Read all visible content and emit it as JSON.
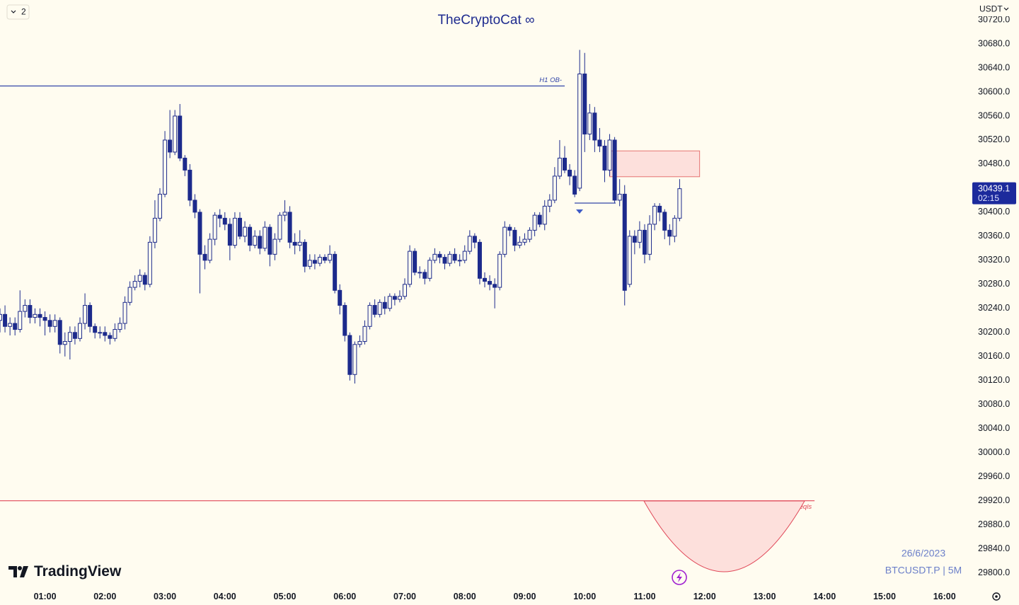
{
  "ui": {
    "collapse_button": "2",
    "currency": "USDT",
    "brand": "TradingView",
    "date": "26/6/2023",
    "symbol": "BTCUSDT.P | 5M"
  },
  "chart_data": {
    "type": "candlestick",
    "title": "TheCryptoCat ∞",
    "color": "#1c2a8c",
    "x": [
      "00:15",
      "00:20",
      "00:25",
      "00:30",
      "00:35",
      "00:40",
      "00:45",
      "00:50",
      "00:55",
      "01:00",
      "01:05",
      "01:10",
      "01:15",
      "01:20",
      "01:25",
      "01:30",
      "01:35",
      "01:40",
      "01:45",
      "01:50",
      "01:55",
      "02:00",
      "02:05",
      "02:10",
      "02:15",
      "02:20",
      "02:25",
      "02:30",
      "02:35",
      "02:40",
      "02:45",
      "02:50",
      "02:55",
      "03:00",
      "03:05",
      "03:10",
      "03:15",
      "03:20",
      "03:25",
      "03:30",
      "03:35",
      "03:40",
      "03:45",
      "03:50",
      "03:55",
      "04:00",
      "04:05",
      "04:10",
      "04:15",
      "04:20",
      "04:25",
      "04:30",
      "04:35",
      "04:40",
      "04:45",
      "04:50",
      "04:55",
      "05:00",
      "05:05",
      "05:10",
      "05:15",
      "05:20",
      "05:25",
      "05:30",
      "05:35",
      "05:40",
      "05:45",
      "05:50",
      "05:55",
      "06:00",
      "06:05",
      "06:10",
      "06:15",
      "06:20",
      "06:25",
      "06:30",
      "06:35",
      "06:40",
      "06:45",
      "06:50",
      "06:55",
      "07:00",
      "07:05",
      "07:10",
      "07:15",
      "07:20",
      "07:25",
      "07:30",
      "07:35",
      "07:40",
      "07:45",
      "07:50",
      "07:55",
      "08:00",
      "08:05",
      "08:10",
      "08:15",
      "08:20",
      "08:25",
      "08:30",
      "08:35",
      "08:40",
      "08:45",
      "08:50",
      "08:55",
      "09:00",
      "09:05",
      "09:10",
      "09:15",
      "09:20",
      "09:25",
      "09:30",
      "09:35",
      "09:40",
      "09:45",
      "09:50",
      "09:55",
      "10:00",
      "10:05",
      "10:10",
      "10:15",
      "10:20",
      "10:25",
      "10:30",
      "10:35",
      "10:40",
      "10:45",
      "10:50",
      "10:55",
      "11:00",
      "11:05",
      "11:10",
      "11:15",
      "11:20",
      "11:25",
      "11:30",
      "11:35"
    ],
    "open": [
      30220,
      30230,
      30210,
      30215,
      30205,
      30235,
      30245,
      30225,
      30230,
      30225,
      30220,
      30210,
      30220,
      30180,
      30185,
      30200,
      30190,
      30215,
      30245,
      30210,
      30200,
      30200,
      30195,
      30190,
      30205,
      30215,
      30250,
      30275,
      30285,
      30295,
      30280,
      30350,
      30390,
      30430,
      30520,
      30500,
      30560,
      30490,
      30470,
      30420,
      30400,
      30330,
      30320,
      30355,
      30395,
      30390,
      30380,
      30345,
      30390,
      30360,
      30375,
      30345,
      30360,
      30340,
      30375,
      30330,
      30355,
      30395,
      30400,
      30350,
      30345,
      30350,
      30310,
      30320,
      30315,
      30325,
      30320,
      30330,
      30270,
      30245,
      30195,
      30130,
      30180,
      30185,
      30210,
      30245,
      30230,
      30250,
      30240,
      30260,
      30255,
      30260,
      30280,
      30335,
      30300,
      30300,
      30290,
      30320,
      30330,
      30325,
      30315,
      30330,
      30320,
      30320,
      30335,
      30360,
      30350,
      30290,
      30285,
      30280,
      30275,
      30330,
      30375,
      30370,
      30345,
      30350,
      30355,
      30370,
      30395,
      30380,
      30410,
      30420,
      30460,
      30490,
      30470,
      30460,
      30440,
      30630,
      30530,
      30565,
      30520,
      30510,
      30470,
      30520,
      30420,
      30430,
      30280,
      30360,
      30350,
      30370,
      30330,
      30380,
      30410,
      30400,
      30370,
      30360,
      30390
    ],
    "high": [
      30240,
      30245,
      30225,
      30225,
      30270,
      30255,
      30255,
      30240,
      30240,
      30235,
      30230,
      30230,
      30225,
      30200,
      30210,
      30210,
      30225,
      30265,
      30250,
      30215,
      30210,
      30210,
      30200,
      30215,
      30225,
      30260,
      30285,
      30295,
      30305,
      30300,
      30360,
      30420,
      30440,
      30535,
      30570,
      30570,
      30580,
      30495,
      30480,
      30430,
      30405,
      30345,
      30365,
      30400,
      30405,
      30400,
      30390,
      30400,
      30400,
      30385,
      30380,
      30370,
      30370,
      30385,
      30380,
      30365,
      30400,
      30420,
      30410,
      30365,
      30370,
      30355,
      30330,
      30330,
      30330,
      30330,
      30345,
      30335,
      30280,
      30250,
      30200,
      30185,
      30195,
      30220,
      30250,
      30255,
      30255,
      30260,
      30265,
      30265,
      30270,
      30290,
      30345,
      30340,
      30310,
      30305,
      30325,
      30340,
      30335,
      30330,
      30335,
      30340,
      30330,
      30345,
      30370,
      30365,
      30355,
      30300,
      30295,
      30290,
      30335,
      30385,
      30380,
      30375,
      30360,
      30365,
      30375,
      30400,
      30400,
      30420,
      30430,
      30475,
      30520,
      30510,
      30480,
      30470,
      30670,
      30665,
      30580,
      30575,
      30540,
      30520,
      30530,
      30525,
      30455,
      30445,
      30370,
      30370,
      30385,
      30380,
      30395,
      30415,
      30415,
      30405,
      30380,
      30395,
      30455
    ],
    "low": [
      30200,
      30200,
      30195,
      30195,
      30200,
      30225,
      30215,
      30215,
      30210,
      30195,
      30200,
      30200,
      30165,
      30160,
      30155,
      30180,
      30185,
      30205,
      30200,
      30190,
      30190,
      30185,
      30180,
      30185,
      30200,
      30205,
      30245,
      30270,
      30275,
      30270,
      30275,
      30340,
      30385,
      30425,
      30490,
      30495,
      30485,
      30460,
      30410,
      30390,
      30265,
      30305,
      30315,
      30345,
      30375,
      30370,
      30320,
      30340,
      30355,
      30350,
      30335,
      30340,
      30330,
      30335,
      30310,
      30320,
      30350,
      30385,
      30340,
      30330,
      30335,
      30300,
      30305,
      30305,
      30310,
      30315,
      30315,
      30265,
      30230,
      30185,
      30120,
      30115,
      30175,
      30180,
      30205,
      30225,
      30225,
      30230,
      30235,
      30245,
      30250,
      30255,
      30275,
      30295,
      30290,
      30280,
      30285,
      30315,
      30315,
      30305,
      30310,
      30315,
      30310,
      30315,
      30330,
      30340,
      30280,
      30275,
      30270,
      30240,
      30270,
      30325,
      30360,
      30335,
      30340,
      30345,
      30350,
      30360,
      30375,
      30370,
      30400,
      30415,
      30455,
      30465,
      30445,
      30425,
      30435,
      30500,
      30520,
      30500,
      30500,
      30450,
      30460,
      30415,
      30410,
      30245,
      30275,
      30330,
      30340,
      30315,
      30320,
      30370,
      30385,
      30355,
      30345,
      30350,
      30385
    ],
    "close": [
      30230,
      30210,
      30215,
      30205,
      30235,
      30245,
      30225,
      30230,
      30225,
      30220,
      30210,
      30220,
      30180,
      30185,
      30200,
      30190,
      30215,
      30245,
      30210,
      30200,
      30200,
      30195,
      30190,
      30205,
      30215,
      30250,
      30275,
      30285,
      30295,
      30280,
      30350,
      30390,
      30430,
      30520,
      30500,
      30560,
      30490,
      30470,
      30420,
      30400,
      30330,
      30320,
      30355,
      30395,
      30390,
      30380,
      30345,
      30390,
      30360,
      30375,
      30345,
      30360,
      30340,
      30375,
      30330,
      30355,
      30395,
      30400,
      30350,
      30345,
      30350,
      30310,
      30320,
      30315,
      30325,
      30320,
      30330,
      30270,
      30245,
      30195,
      30130,
      30180,
      30185,
      30210,
      30245,
      30230,
      30250,
      30240,
      30260,
      30255,
      30260,
      30280,
      30335,
      30300,
      30300,
      30290,
      30320,
      30330,
      30325,
      30315,
      30330,
      30320,
      30320,
      30335,
      30360,
      30350,
      30290,
      30285,
      30280,
      30275,
      30330,
      30375,
      30370,
      30345,
      30350,
      30355,
      30370,
      30395,
      30380,
      30410,
      30420,
      30460,
      30490,
      30470,
      30460,
      30430,
      30630,
      30530,
      30565,
      30520,
      30510,
      30470,
      30520,
      30420,
      30430,
      30270,
      30360,
      30350,
      30370,
      30330,
      30380,
      30410,
      30400,
      30370,
      30360,
      30390,
      30439.1
    ],
    "countdown": "02:15",
    "xlim": [
      "00:15",
      "16:25"
    ],
    "xticks": [
      "01:00",
      "02:00",
      "03:00",
      "04:00",
      "05:00",
      "06:00",
      "07:00",
      "08:00",
      "09:00",
      "10:00",
      "11:00",
      "12:00",
      "13:00",
      "14:00",
      "15:00",
      "16:00"
    ],
    "ylim": [
      29776,
      30753
    ],
    "yticks": [
      {
        "value": 29800,
        "label": "29800.0"
      },
      {
        "value": 29840,
        "label": "29840.0"
      },
      {
        "value": 29880,
        "label": "29880.0"
      },
      {
        "value": 29920,
        "label": "29920.0"
      },
      {
        "value": 29960,
        "label": "29960.0"
      },
      {
        "value": 30000,
        "label": "30000.0"
      },
      {
        "value": 30040,
        "label": "30040.0"
      },
      {
        "value": 30080,
        "label": "30080.0"
      },
      {
        "value": 30120,
        "label": "30120.0"
      },
      {
        "value": 30160,
        "label": "30160.0"
      },
      {
        "value": 30200,
        "label": "30200.0"
      },
      {
        "value": 30240,
        "label": "30240.0"
      },
      {
        "value": 30280,
        "label": "30280.0"
      },
      {
        "value": 30320,
        "label": "30320.0"
      },
      {
        "value": 30360,
        "label": "30360.0"
      },
      {
        "value": 30400,
        "label": "30400.0"
      },
      {
        "value": 30440,
        "label": "30440.0"
      },
      {
        "value": 30480,
        "label": "30480.0"
      },
      {
        "value": 30520,
        "label": "30520.0"
      },
      {
        "value": 30560,
        "label": "30560.0"
      },
      {
        "value": 30600,
        "label": "30600.0"
      },
      {
        "value": 30640,
        "label": "30640.0"
      },
      {
        "value": 30680,
        "label": "30680.0"
      },
      {
        "value": 30720,
        "label": "30720.0"
      }
    ],
    "levels": [
      {
        "label": "H1 OB-",
        "value": 30610,
        "from": "00:15",
        "to": "09:40",
        "color": "#3346a8"
      },
      {
        "label": "eqls",
        "value": 29920,
        "from": "00:15",
        "to": "13:50",
        "color": "#e04858"
      }
    ],
    "zone": {
      "top": 30502,
      "bottom": 30459,
      "from": "10:25",
      "to": "11:55",
      "color": "#e57373"
    }
  }
}
